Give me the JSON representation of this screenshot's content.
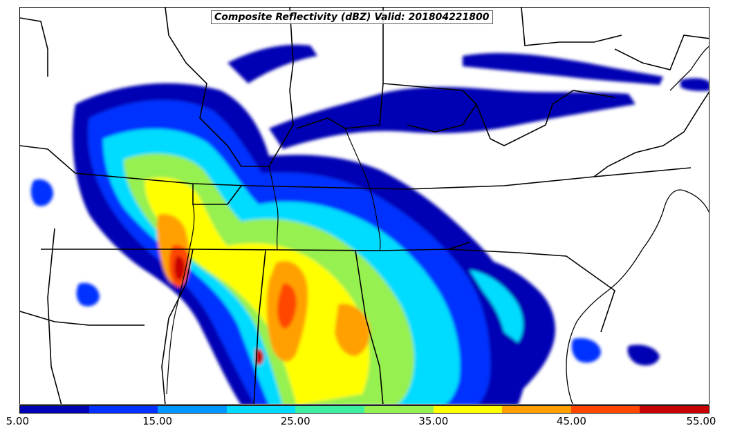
{
  "title": "Composite Reflectivity (dBZ) Valid: 201804221800",
  "colorbar": {
    "colors": [
      "#0000b4",
      "#0030ff",
      "#0096ff",
      "#00dcff",
      "#3cf0a0",
      "#96f050",
      "#ffff00",
      "#ffa000",
      "#ff4600",
      "#c80000"
    ],
    "tick_labels": [
      "5.00",
      "15.00",
      "25.00",
      "35.00",
      "45.00",
      "55.00"
    ]
  },
  "palette": {
    "background": "#ffffff",
    "borders": "#000000"
  }
}
